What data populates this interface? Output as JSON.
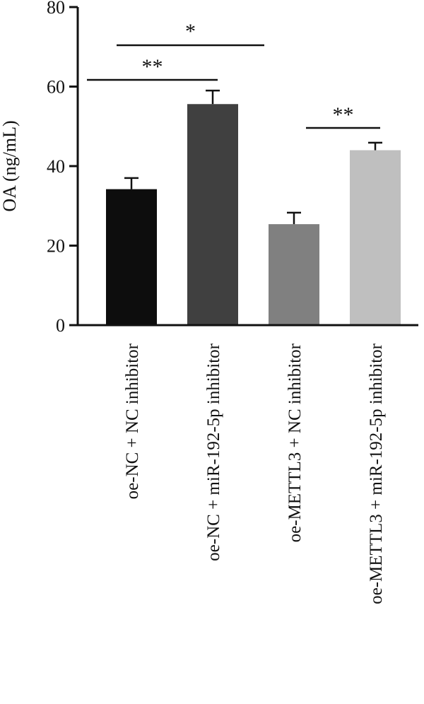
{
  "chart_data": {
    "type": "bar",
    "ylabel": "OA (ng/mL)",
    "xlabel": "",
    "ylim": [
      0,
      80
    ],
    "yticks": [
      0,
      20,
      40,
      60,
      80
    ],
    "categories": [
      "oe-NC + NC inhibitor",
      "oe-NC + miR-192-5p inhibitor",
      "oe-METTL3 + NC inhibitor",
      "oe-METTL3 + miR-192-5p inhibitor"
    ],
    "values": [
      34.2,
      55.6,
      25.4,
      44.0
    ],
    "errors": [
      2.8,
      3.4,
      2.9,
      1.9
    ],
    "bar_colors": [
      "#0d0d0d",
      "#404040",
      "#808080",
      "#bfbfbf"
    ],
    "significance": [
      {
        "from": 0,
        "to": 1,
        "label": "**"
      },
      {
        "from": 0,
        "to": 2,
        "label": "*"
      },
      {
        "from": 2,
        "to": 3,
        "label": "**"
      }
    ]
  }
}
